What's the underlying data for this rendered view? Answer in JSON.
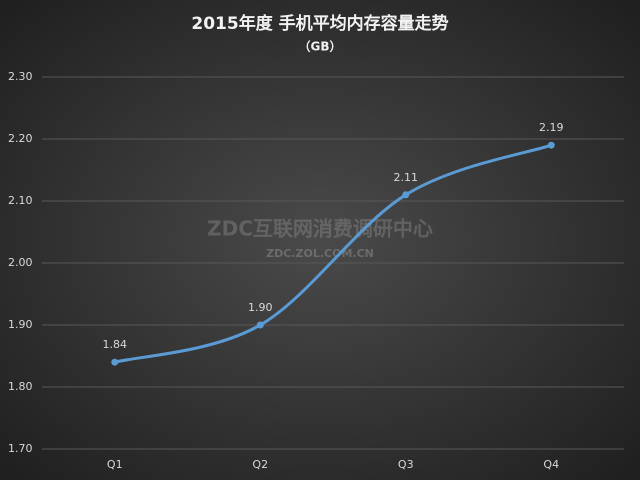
{
  "chart_data": {
    "type": "line",
    "title": "2015年度 手机平均内存容量走势",
    "subtitle": "（GB）",
    "watermark": [
      "ZDC互联网消费调研中心",
      "ZDC.ZOL.COM.CN"
    ],
    "categories": [
      "Q1",
      "Q2",
      "Q3",
      "Q4"
    ],
    "values": [
      1.84,
      1.9,
      2.11,
      2.19
    ],
    "value_labels": [
      "1.84",
      "1.90",
      "2.11",
      "2.19"
    ],
    "color": "#5b9bd5",
    "ylim": [
      1.7,
      2.3
    ],
    "yticks": [
      {
        "value": 1.7,
        "label": "1.70"
      },
      {
        "value": 1.8,
        "label": "1.80"
      },
      {
        "value": 1.9,
        "label": "1.90"
      },
      {
        "value": 2.0,
        "label": "2.00"
      },
      {
        "value": 2.1,
        "label": "2.10"
      },
      {
        "value": 2.2,
        "label": "2.20"
      },
      {
        "value": 2.3,
        "label": "2.30"
      }
    ],
    "grid": true
  }
}
